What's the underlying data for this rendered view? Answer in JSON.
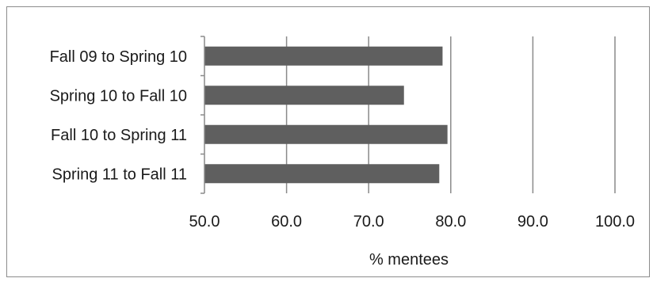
{
  "chart_data": {
    "type": "bar",
    "orientation": "horizontal",
    "title": "",
    "xlabel": "% mentees",
    "ylabel": "",
    "categories": [
      "Fall 09 to Spring 10",
      "Spring 10 to Fall 10",
      "Fall 10 to Spring 11",
      "Spring 11 to Fall 11"
    ],
    "values": [
      79.0,
      74.3,
      79.6,
      78.6
    ],
    "xlim": [
      50.0,
      100.0
    ],
    "ticks": [
      "50.0",
      "60.0",
      "70.0",
      "80.0",
      "90.0",
      "100.0"
    ],
    "grid": "vertical",
    "legend": "none",
    "bar_color": "#5f5f5f",
    "grid_color": "#8a8a8a"
  }
}
